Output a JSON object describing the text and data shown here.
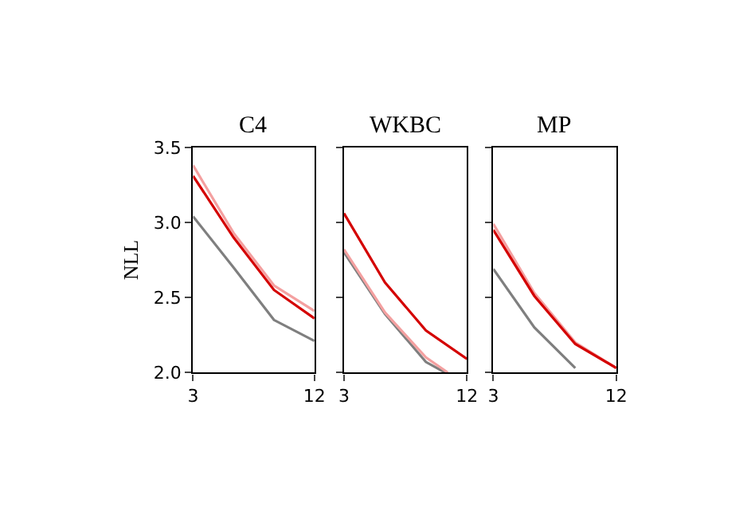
{
  "chart_data": [
    {
      "type": "line",
      "title": "C4",
      "ylabel": "NLL",
      "x": [
        3,
        6,
        9,
        12
      ],
      "xlim": [
        3,
        12
      ],
      "xticks": [
        3,
        12
      ],
      "ylim": [
        2.0,
        3.5
      ],
      "yticks": [
        {
          "value": 2.0,
          "label": "2.0"
        },
        {
          "value": 2.5,
          "label": "2.5"
        },
        {
          "value": 3.0,
          "label": "3.0"
        },
        {
          "value": 3.5,
          "label": "3.5"
        }
      ],
      "series": [
        {
          "color": "#7f7f7f",
          "values": [
            3.04,
            2.7,
            2.35,
            2.21
          ]
        },
        {
          "color": "#f4a0a0",
          "values": [
            3.38,
            2.93,
            2.58,
            2.41
          ]
        },
        {
          "color": "#d40000",
          "values": [
            3.31,
            2.9,
            2.55,
            2.36
          ]
        }
      ]
    },
    {
      "type": "line",
      "title": "WKBC",
      "x": [
        3,
        6,
        9,
        12
      ],
      "xlim": [
        3,
        12
      ],
      "xticks": [
        3,
        12
      ],
      "ylim": [
        2.0,
        3.5
      ],
      "yticks": [
        {
          "value": 2.0,
          "label": null
        },
        {
          "value": 2.5,
          "label": null
        },
        {
          "value": 3.0,
          "label": null
        },
        {
          "value": 3.5,
          "label": null
        }
      ],
      "tick_labels": "x",
      "series": [
        {
          "color": "#7f7f7f",
          "x": [
            3,
            6,
            9,
            10.4
          ],
          "values": [
            2.8,
            2.39,
            2.07,
            2.0
          ]
        },
        {
          "color": "#f4a0a0",
          "x": [
            3,
            6,
            9,
            10.6
          ],
          "values": [
            2.82,
            2.4,
            2.1,
            2.0
          ]
        },
        {
          "color": "#d40000",
          "values": [
            3.06,
            2.6,
            2.28,
            2.09
          ]
        }
      ]
    },
    {
      "type": "line",
      "title": "MP",
      "x": [
        3,
        6,
        9,
        12
      ],
      "xlim": [
        3,
        12
      ],
      "xticks": [
        3,
        12
      ],
      "ylim": [
        2.0,
        3.5
      ],
      "yticks": [
        {
          "value": 2.0,
          "label": null
        },
        {
          "value": 2.5,
          "label": null
        },
        {
          "value": 3.0,
          "label": null
        },
        {
          "value": 3.5,
          "label": null
        }
      ],
      "tick_labels": "x",
      "series": [
        {
          "color": "#7f7f7f",
          "x": [
            3,
            6,
            9
          ],
          "values": [
            2.69,
            2.3,
            2.03
          ]
        },
        {
          "color": "#f4a0a0",
          "values": [
            2.99,
            2.53,
            2.2,
            2.03
          ]
        },
        {
          "color": "#d40000",
          "values": [
            2.95,
            2.51,
            2.19,
            2.03
          ]
        }
      ]
    }
  ]
}
